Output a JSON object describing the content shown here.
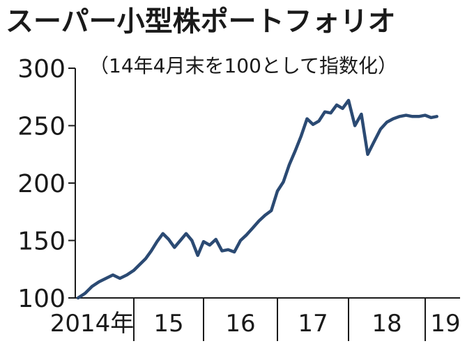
{
  "chart_data": {
    "type": "line",
    "title": "スーパー小型株ポートフォリオ",
    "subtitle": "（14年4月末を100として指数化）",
    "ylim": [
      100,
      300
    ],
    "y_ticks": [
      "300",
      "250",
      "200",
      "150",
      "100"
    ],
    "x_labels": [
      "2014年",
      "15",
      "16",
      "17",
      "18",
      "19"
    ],
    "grid": false,
    "line_color": "#2b4a73",
    "series": [
      {
        "x": [
          2014.333,
          2014.417,
          2014.5,
          2014.583,
          2014.667,
          2014.75,
          2014.833,
          2014.917,
          2015.0,
          2015.083,
          2015.167,
          2015.25,
          2015.333,
          2015.417,
          2015.5,
          2015.583,
          2015.667,
          2015.75,
          2015.833,
          2015.917,
          2016.0,
          2016.083,
          2016.167,
          2016.25,
          2016.333,
          2016.417,
          2016.5,
          2016.583,
          2016.667,
          2016.75,
          2016.833,
          2016.917,
          2017.0,
          2017.083,
          2017.167,
          2017.25,
          2017.333,
          2017.417,
          2017.5,
          2017.583,
          2017.667,
          2017.75,
          2017.833,
          2017.917,
          2018.0,
          2018.083,
          2018.167,
          2018.25,
          2018.333,
          2018.417,
          2018.5,
          2018.583,
          2018.667,
          2018.75,
          2018.833,
          2018.917,
          2019.0,
          2019.083,
          2019.167
        ],
        "values": [
          100,
          104,
          110,
          114,
          117,
          120,
          117,
          120,
          124,
          129,
          134,
          141,
          149,
          156,
          151,
          144,
          150,
          156,
          150,
          137,
          149,
          146,
          151,
          141,
          142,
          140,
          150,
          155,
          161,
          167,
          172,
          176,
          193,
          201,
          216,
          228,
          241,
          256,
          251,
          254,
          262,
          261,
          268,
          265,
          272,
          250,
          260,
          225,
          236,
          247,
          253,
          256,
          258,
          259,
          258,
          258,
          259,
          257,
          258
        ]
      }
    ]
  }
}
